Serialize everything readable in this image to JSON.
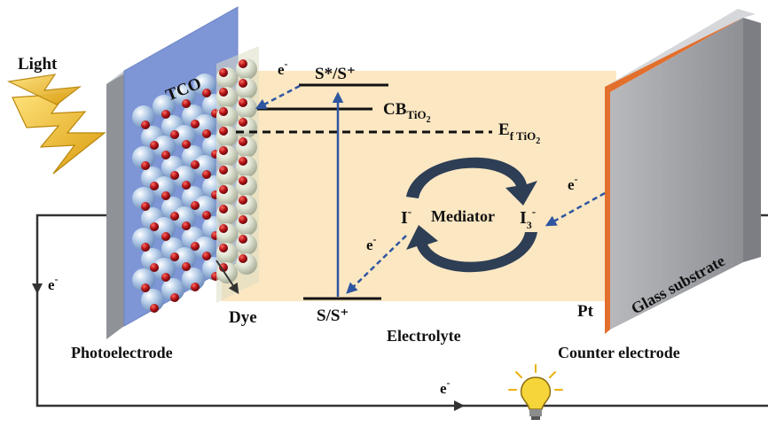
{
  "labels": {
    "light": "Light",
    "tco": "TCO",
    "photoelectrode": "Photoelectrode",
    "dye": "Dye",
    "electrolyte": "Electrolyte",
    "pt": "Pt",
    "counter_electrode": "Counter electrode",
    "glass_substrate": "Glass substrate",
    "mediator": "Mediator"
  },
  "energy_levels": {
    "excited_state": "S*/S⁺",
    "ground_state": "S/S⁺",
    "cb_main": "CB",
    "cb_sub": "TiO",
    "cb_subsub": "2",
    "ef_main": "E",
    "ef_sub": "f TiO",
    "ef_subsub": "2"
  },
  "redox": {
    "iodide_main": "I",
    "iodide_sup": "-",
    "triiodide_main": "I",
    "triiodide_sub": "3",
    "triiodide_sup": "-"
  },
  "electron": {
    "main": "e",
    "sup": "-"
  },
  "colors": {
    "electrolyte": "#fbe7c2",
    "tco": "#7e96d6",
    "counter_edge": "#e36f2c",
    "electron_arrow": "#2f55a0",
    "mediator_arrow": "#2d3e55",
    "nanoparticle": "#a9c3e2",
    "dye_dot": "#b5161a",
    "lightning": "#f0b81c",
    "bulb": "#f6d53a"
  }
}
